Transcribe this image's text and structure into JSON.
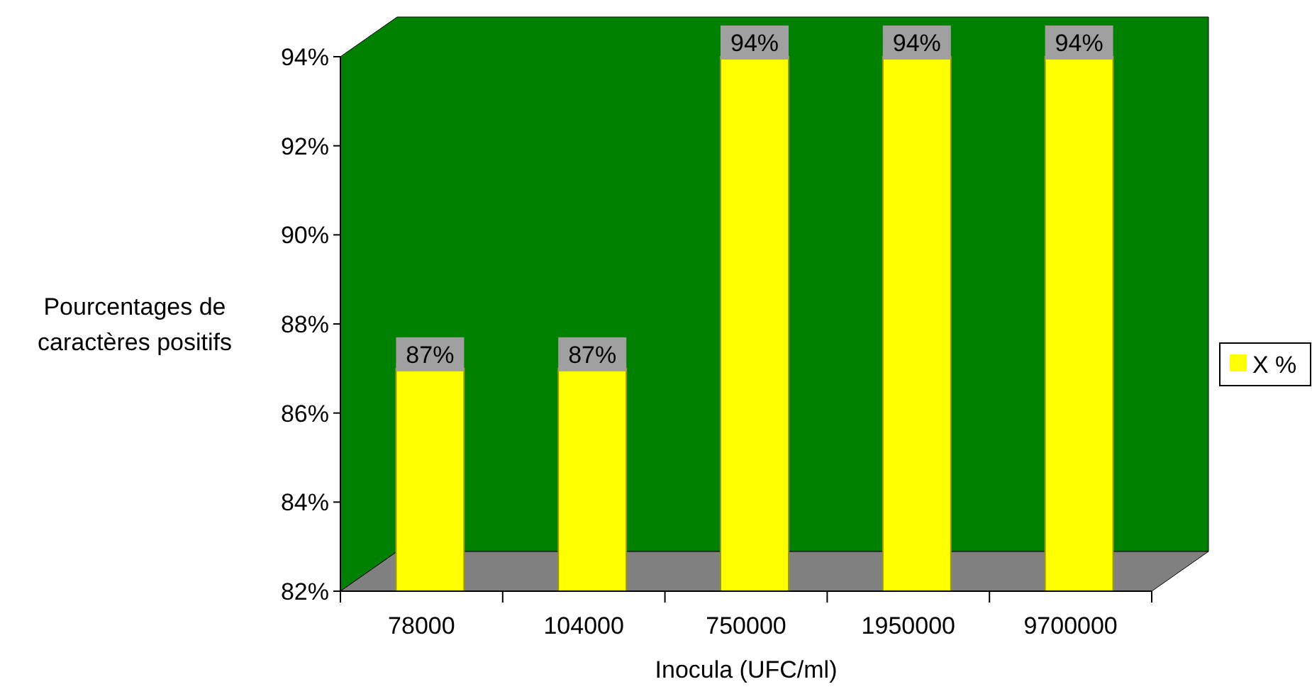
{
  "chart_data": {
    "type": "bar",
    "xlabel": "Inocula (UFC/ml)",
    "ylabel": "Pourcentages de caractères positifs",
    "categories": [
      "78000",
      "104000",
      "750000",
      "1950000",
      "9700000"
    ],
    "series": [
      {
        "name": "X %",
        "color": "#ffff00",
        "values": [
          87,
          87,
          94,
          94,
          94
        ],
        "value_labels": [
          "87%",
          "87%",
          "94%",
          "94%",
          "94%"
        ]
      }
    ],
    "ylim": [
      82,
      94
    ],
    "yticks": [
      {
        "value": 82,
        "label": "82%"
      },
      {
        "value": 84,
        "label": "84%"
      },
      {
        "value": 86,
        "label": "86%"
      },
      {
        "value": 88,
        "label": "88%"
      },
      {
        "value": 90,
        "label": "90%"
      },
      {
        "value": 92,
        "label": "92%"
      },
      {
        "value": 94,
        "label": "94%"
      }
    ],
    "legend": "right"
  }
}
